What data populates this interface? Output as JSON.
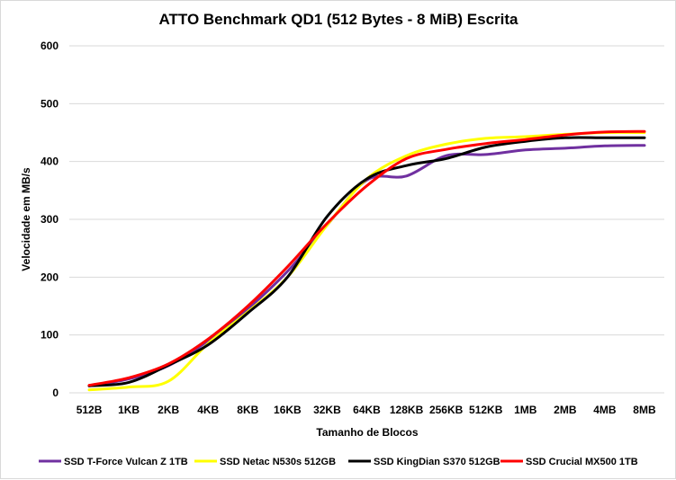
{
  "chart_data": {
    "type": "line",
    "title": "ATTO Benchmark QD1 (512 Bytes - 8 MiB) Escrita",
    "xlabel": "Tamanho de Blocos",
    "ylabel": "Velocidade em MB/s",
    "ylim": [
      0,
      600
    ],
    "yticks": [
      0,
      100,
      200,
      300,
      400,
      500,
      600
    ],
    "grid": true,
    "legend_position": "bottom",
    "categories": [
      "512B",
      "1KB",
      "2KB",
      "4KB",
      "8KB",
      "16KB",
      "32KB",
      "64KB",
      "128KB",
      "256KB",
      "512KB",
      "1MB",
      "2MB",
      "4MB",
      "8MB"
    ],
    "series": [
      {
        "name": "SSD T-Force Vulcan Z 1TB",
        "color": "#7030a0",
        "values": [
          12,
          24,
          47,
          90,
          145,
          210,
          290,
          368,
          375,
          410,
          412,
          420,
          423,
          427,
          428
        ]
      },
      {
        "name": "SSD Netac N530s 512GB",
        "color": "#ffff00",
        "values": [
          5,
          10,
          20,
          85,
          140,
          200,
          290,
          370,
          410,
          430,
          440,
          443,
          447,
          450,
          450
        ]
      },
      {
        "name": "SSD KingDian S370 512GB",
        "color": "#000000",
        "values": [
          12,
          18,
          48,
          83,
          138,
          200,
          305,
          370,
          393,
          405,
          425,
          435,
          441,
          441,
          441
        ]
      },
      {
        "name": "SSD Crucial MX500 1TB",
        "color": "#ff0000",
        "values": [
          13,
          26,
          50,
          93,
          150,
          218,
          293,
          358,
          405,
          421,
          431,
          438,
          446,
          451,
          452
        ]
      }
    ]
  }
}
